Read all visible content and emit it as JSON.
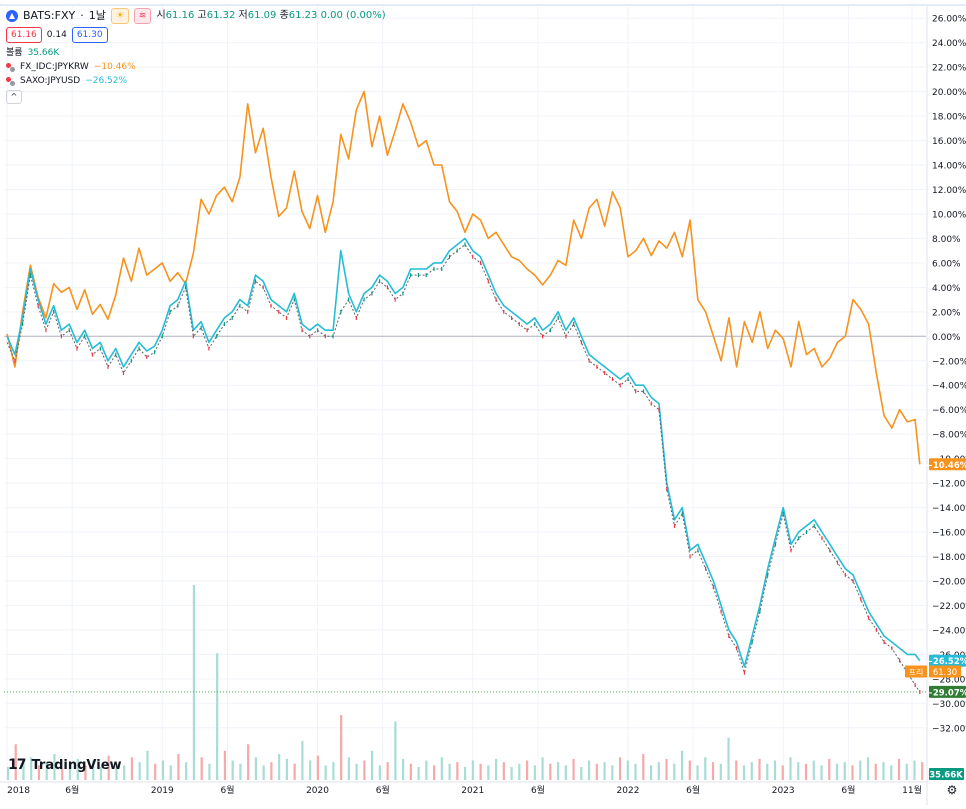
{
  "header": {
    "symbol": "BATS:FXY",
    "interval": "1날",
    "icon_a": "☀",
    "icon_b": "≋",
    "open_label": "시",
    "open": "61.16",
    "high_label": "고",
    "high": "61.32",
    "low_label": "저",
    "low": "61.09",
    "close_label": "종",
    "close": "61.23",
    "change": "0.00 (0.00%)",
    "bid": "61.16",
    "spread": "0.14",
    "ask": "61.30",
    "volume_label": "볼륨",
    "volume": "35.66K",
    "collapse": "^"
  },
  "comparisons": [
    {
      "symbol": "FX_IDC:JPYKRW",
      "change": "−10.46%",
      "color": "#f7921d"
    },
    {
      "symbol": "SAXO:JPYUSD",
      "change": "−26.52%",
      "color": "#26bcd6"
    }
  ],
  "branding": {
    "mark": "17",
    "text": "TradingView"
  },
  "settings_icon": "gear-icon",
  "colors": {
    "krw": "#f7921d",
    "usd": "#26bcd6",
    "candle_up": "#089981",
    "candle_down": "#f23645",
    "vol_up": "#a8dcd5",
    "vol_down": "#f7a9a9",
    "grid": "#f0f3fa",
    "baseline": "#b2b5be"
  },
  "chart_data": {
    "type": "line",
    "y_axis_format": "percent",
    "ylim": [
      -33,
      27
    ],
    "y_ticks": [
      "26.00%",
      "24.00%",
      "22.00%",
      "20.00%",
      "18.00%",
      "16.00%",
      "14.00%",
      "12.00%",
      "10.00%",
      "8.00%",
      "6.00%",
      "4.00%",
      "2.00%",
      "0.00%",
      "−2.00%",
      "−4.00%",
      "−6.00%",
      "−8.00%",
      "−10.00%",
      "−12.00%",
      "−14.00%",
      "−16.00%",
      "−18.00%",
      "−20.00%",
      "−22.00%",
      "−24.00%",
      "−26.00%",
      "−28.00%",
      "−30.00%",
      "−32.00%"
    ],
    "y_tick_values": [
      26,
      24,
      22,
      20,
      18,
      16,
      14,
      12,
      10,
      8,
      6,
      4,
      2,
      0,
      -2,
      -4,
      -6,
      -8,
      -10,
      -12,
      -14,
      -16,
      -18,
      -20,
      -22,
      -24,
      -26,
      -28,
      -30,
      -32
    ],
    "x_ticks": [
      {
        "label": "2018",
        "t": 2018.0
      },
      {
        "label": "6월",
        "t": 2018.42
      },
      {
        "label": "2019",
        "t": 2019.0
      },
      {
        "label": "6월",
        "t": 2019.42
      },
      {
        "label": "2020",
        "t": 2020.0
      },
      {
        "label": "6월",
        "t": 2020.42
      },
      {
        "label": "2021",
        "t": 2021.0
      },
      {
        "label": "6월",
        "t": 2021.42
      },
      {
        "label": "2022",
        "t": 2022.0
      },
      {
        "label": "6월",
        "t": 2022.42
      },
      {
        "label": "2023",
        "t": 2023.0
      },
      {
        "label": "6월",
        "t": 2023.42
      },
      {
        "label": "11월",
        "t": 2023.83
      }
    ],
    "xlim": [
      2017.98,
      2023.92
    ],
    "series": [
      {
        "name": "FX_IDC:JPYKRW",
        "role": "krw",
        "x": [
          2018.0,
          2018.05,
          2018.1,
          2018.15,
          2018.2,
          2018.25,
          2018.3,
          2018.35,
          2018.4,
          2018.45,
          2018.5,
          2018.55,
          2018.6,
          2018.65,
          2018.7,
          2018.75,
          2018.8,
          2018.85,
          2018.9,
          2018.95,
          2019.0,
          2019.05,
          2019.1,
          2019.15,
          2019.2,
          2019.25,
          2019.3,
          2019.35,
          2019.4,
          2019.45,
          2019.5,
          2019.55,
          2019.6,
          2019.65,
          2019.7,
          2019.75,
          2019.8,
          2019.85,
          2019.9,
          2019.95,
          2020.0,
          2020.05,
          2020.1,
          2020.15,
          2020.2,
          2020.25,
          2020.3,
          2020.35,
          2020.4,
          2020.45,
          2020.5,
          2020.55,
          2020.6,
          2020.65,
          2020.7,
          2020.75,
          2020.8,
          2020.85,
          2020.9,
          2020.95,
          2021.0,
          2021.05,
          2021.1,
          2021.15,
          2021.2,
          2021.25,
          2021.3,
          2021.35,
          2021.4,
          2021.45,
          2021.5,
          2021.55,
          2021.6,
          2021.65,
          2021.7,
          2021.75,
          2021.8,
          2021.85,
          2021.9,
          2021.95,
          2022.0,
          2022.05,
          2022.1,
          2022.15,
          2022.2,
          2022.25,
          2022.3,
          2022.35,
          2022.4,
          2022.45,
          2022.5,
          2022.55,
          2022.6,
          2022.65,
          2022.7,
          2022.75,
          2022.8,
          2022.85,
          2022.9,
          2022.95,
          2023.0,
          2023.05,
          2023.1,
          2023.15,
          2023.2,
          2023.25,
          2023.3,
          2023.35,
          2023.4,
          2023.45,
          2023.5,
          2023.55,
          2023.6,
          2023.65,
          2023.7,
          2023.75,
          2023.8,
          2023.85,
          2023.88
        ],
        "values": [
          0.2,
          -2.5,
          2.0,
          5.8,
          3.2,
          1.5,
          4.3,
          3.6,
          4.0,
          2.2,
          3.8,
          1.8,
          2.6,
          1.4,
          3.4,
          6.4,
          4.5,
          7.2,
          5.0,
          5.5,
          6.0,
          4.5,
          5.2,
          4.3,
          6.8,
          11.2,
          10.0,
          11.5,
          12.2,
          11.0,
          13.0,
          19.0,
          15.0,
          17.0,
          13.0,
          9.8,
          10.5,
          13.5,
          10.2,
          8.8,
          11.5,
          8.5,
          11.0,
          16.5,
          14.5,
          18.5,
          20.0,
          15.5,
          18.0,
          14.8,
          16.8,
          19.0,
          17.5,
          15.5,
          16.0,
          14.0,
          14.0,
          11.0,
          10.2,
          8.5,
          10.0,
          9.5,
          8.0,
          8.5,
          7.5,
          6.5,
          6.2,
          5.5,
          5.0,
          4.2,
          5.0,
          6.2,
          5.8,
          9.5,
          8.0,
          10.5,
          11.2,
          9.0,
          11.8,
          10.5,
          6.5,
          7.0,
          8.0,
          6.6,
          7.8,
          7.2,
          8.5,
          6.5,
          9.5,
          3.0,
          2.0,
          0.0,
          -2.0,
          1.5,
          -2.5,
          1.2,
          -0.5,
          2.0,
          -1.0,
          0.5,
          -0.2,
          -2.5,
          1.2,
          -1.5,
          -1.0,
          -2.5,
          -1.8,
          -0.5,
          0.0,
          3.0,
          2.2,
          1.0,
          -3.0,
          -6.5,
          -7.5,
          -6.0,
          -7.0,
          -6.8,
          -10.46
        ]
      },
      {
        "name": "SAXO:JPYUSD",
        "role": "usd",
        "x": [
          2018.0,
          2018.05,
          2018.1,
          2018.15,
          2018.2,
          2018.25,
          2018.3,
          2018.35,
          2018.4,
          2018.45,
          2018.5,
          2018.55,
          2018.6,
          2018.65,
          2018.7,
          2018.75,
          2018.8,
          2018.85,
          2018.9,
          2018.95,
          2019.0,
          2019.05,
          2019.1,
          2019.15,
          2019.2,
          2019.25,
          2019.3,
          2019.35,
          2019.4,
          2019.45,
          2019.5,
          2019.55,
          2019.6,
          2019.65,
          2019.7,
          2019.75,
          2019.8,
          2019.85,
          2019.9,
          2019.95,
          2020.0,
          2020.05,
          2020.1,
          2020.15,
          2020.2,
          2020.25,
          2020.3,
          2020.35,
          2020.4,
          2020.45,
          2020.5,
          2020.55,
          2020.6,
          2020.65,
          2020.7,
          2020.75,
          2020.8,
          2020.85,
          2020.9,
          2020.95,
          2021.0,
          2021.05,
          2021.1,
          2021.15,
          2021.2,
          2021.25,
          2021.3,
          2021.35,
          2021.4,
          2021.45,
          2021.5,
          2021.55,
          2021.6,
          2021.65,
          2021.7,
          2021.75,
          2021.8,
          2021.85,
          2021.9,
          2021.95,
          2022.0,
          2022.05,
          2022.1,
          2022.15,
          2022.2,
          2022.25,
          2022.3,
          2022.35,
          2022.4,
          2022.45,
          2022.5,
          2022.55,
          2022.6,
          2022.65,
          2022.7,
          2022.75,
          2022.8,
          2022.85,
          2022.9,
          2022.95,
          2023.0,
          2023.05,
          2023.1,
          2023.15,
          2023.2,
          2023.25,
          2023.3,
          2023.35,
          2023.4,
          2023.45,
          2023.5,
          2023.55,
          2023.6,
          2023.65,
          2023.7,
          2023.75,
          2023.8,
          2023.85,
          2023.88
        ],
        "values": [
          0.0,
          -1.5,
          1.5,
          5.5,
          3.0,
          1.0,
          2.5,
          0.5,
          1.0,
          -0.5,
          0.5,
          -1.0,
          -0.5,
          -2.0,
          -1.0,
          -2.5,
          -1.5,
          -0.5,
          -1.2,
          -0.8,
          0.5,
          2.5,
          3.0,
          4.5,
          0.5,
          1.2,
          -0.5,
          0.5,
          1.5,
          2.0,
          3.0,
          2.5,
          5.0,
          4.5,
          3.0,
          2.5,
          2.0,
          3.5,
          1.0,
          0.5,
          1.0,
          0.5,
          0.5,
          7.0,
          3.5,
          2.0,
          3.5,
          4.0,
          5.0,
          4.5,
          3.5,
          4.0,
          5.5,
          5.5,
          5.5,
          6.0,
          6.0,
          7.0,
          7.5,
          8.0,
          7.0,
          6.5,
          5.0,
          3.5,
          2.5,
          2.0,
          1.5,
          1.0,
          1.5,
          0.5,
          1.0,
          2.0,
          0.5,
          1.5,
          0.0,
          -1.5,
          -2.0,
          -2.5,
          -3.0,
          -3.5,
          -3.0,
          -4.0,
          -4.0,
          -5.0,
          -5.5,
          -12.0,
          -15.0,
          -14.0,
          -17.5,
          -17.0,
          -18.5,
          -20.0,
          -22.0,
          -24.0,
          -25.0,
          -27.0,
          -24.5,
          -22.0,
          -19.0,
          -16.5,
          -14.0,
          -17.0,
          -16.0,
          -15.5,
          -15.0,
          -16.0,
          -17.0,
          -18.0,
          -19.0,
          -19.5,
          -21.0,
          -22.5,
          -23.5,
          -24.5,
          -25.0,
          -25.5,
          -26.0,
          -26.0,
          -26.52
        ]
      },
      {
        "name": "BATS:FXY",
        "role": "main",
        "x": [
          2018.0,
          2018.05,
          2018.1,
          2018.15,
          2018.2,
          2018.25,
          2018.3,
          2018.35,
          2018.4,
          2018.45,
          2018.5,
          2018.55,
          2018.6,
          2018.65,
          2018.7,
          2018.75,
          2018.8,
          2018.85,
          2018.9,
          2018.95,
          2019.0,
          2019.05,
          2019.1,
          2019.15,
          2019.2,
          2019.25,
          2019.3,
          2019.35,
          2019.4,
          2019.45,
          2019.5,
          2019.55,
          2019.6,
          2019.65,
          2019.7,
          2019.75,
          2019.8,
          2019.85,
          2019.9,
          2019.95,
          2020.0,
          2020.05,
          2020.1,
          2020.15,
          2020.2,
          2020.25,
          2020.3,
          2020.35,
          2020.4,
          2020.45,
          2020.5,
          2020.55,
          2020.6,
          2020.65,
          2020.7,
          2020.75,
          2020.8,
          2020.85,
          2020.9,
          2020.95,
          2021.0,
          2021.05,
          2021.1,
          2021.15,
          2021.2,
          2021.25,
          2021.3,
          2021.35,
          2021.4,
          2021.45,
          2021.5,
          2021.55,
          2021.6,
          2021.65,
          2021.7,
          2021.75,
          2021.8,
          2021.85,
          2021.9,
          2021.95,
          2022.0,
          2022.05,
          2022.1,
          2022.15,
          2022.2,
          2022.25,
          2022.3,
          2022.35,
          2022.4,
          2022.45,
          2022.5,
          2022.55,
          2022.6,
          2022.65,
          2022.7,
          2022.75,
          2022.8,
          2022.85,
          2022.9,
          2022.95,
          2023.0,
          2023.05,
          2023.1,
          2023.15,
          2023.2,
          2023.25,
          2023.3,
          2023.35,
          2023.4,
          2023.45,
          2023.5,
          2023.55,
          2023.6,
          2023.65,
          2023.7,
          2023.75,
          2023.8,
          2023.85,
          2023.88
        ],
        "values": [
          -0.5,
          -2.0,
          1.0,
          5.0,
          2.5,
          0.5,
          2.0,
          0.0,
          0.5,
          -1.0,
          0.0,
          -1.5,
          -1.0,
          -2.5,
          -1.5,
          -3.0,
          -2.0,
          -1.0,
          -1.7,
          -1.3,
          0.0,
          2.0,
          2.5,
          4.0,
          0.0,
          0.7,
          -1.0,
          0.0,
          1.0,
          1.5,
          2.5,
          2.0,
          4.5,
          4.0,
          2.5,
          2.0,
          1.5,
          3.0,
          0.5,
          0.0,
          0.5,
          0.0,
          0.0,
          2.0,
          3.0,
          1.5,
          3.0,
          3.5,
          4.5,
          4.0,
          3.0,
          3.5,
          5.0,
          5.0,
          5.0,
          5.5,
          5.5,
          6.5,
          7.0,
          7.5,
          6.5,
          6.0,
          4.5,
          3.0,
          2.0,
          1.5,
          1.0,
          0.5,
          1.0,
          0.0,
          0.5,
          1.5,
          0.0,
          1.0,
          -0.5,
          -2.0,
          -2.5,
          -3.0,
          -3.5,
          -4.0,
          -3.5,
          -4.5,
          -4.5,
          -5.5,
          -6.0,
          -12.5,
          -15.5,
          -14.5,
          -18.0,
          -17.5,
          -19.0,
          -20.5,
          -22.5,
          -24.5,
          -25.5,
          -27.5,
          -25.0,
          -22.5,
          -19.5,
          -17.0,
          -14.5,
          -17.5,
          -16.5,
          -16.0,
          -15.5,
          -16.5,
          -17.5,
          -18.5,
          -19.5,
          -20.0,
          -21.5,
          -23.0,
          -24.0,
          -25.0,
          -25.5,
          -26.5,
          -27.5,
          -28.5,
          -29.07
        ]
      }
    ],
    "volume": {
      "values": [
        8,
        22,
        12,
        14,
        9,
        11,
        16,
        7,
        10,
        13,
        9,
        12,
        8,
        15,
        10,
        9,
        14,
        11,
        18,
        10,
        12,
        9,
        16,
        11,
        120,
        14,
        10,
        78,
        18,
        12,
        10,
        22,
        14,
        9,
        11,
        16,
        13,
        10,
        24,
        12,
        15,
        9,
        11,
        40,
        14,
        10,
        12,
        18,
        9,
        11,
        36,
        13,
        10,
        8,
        12,
        9,
        14,
        10,
        11,
        8,
        12,
        10,
        9,
        13,
        11,
        8,
        10,
        12,
        9,
        14,
        10,
        11,
        9,
        13,
        8,
        12,
        10,
        11,
        9,
        14,
        12,
        10,
        16,
        9,
        11,
        13,
        10,
        18,
        12,
        9,
        14,
        11,
        10,
        26,
        12,
        9,
        11,
        13,
        10,
        12,
        9,
        14,
        11,
        10,
        12,
        9,
        13,
        10,
        11,
        9,
        12,
        14,
        10,
        11,
        9,
        13,
        10,
        12,
        11
      ]
    },
    "axis_labels": [
      {
        "series": "FX_IDC:JPYKRW",
        "text": "−10.46%"
      },
      {
        "series": "SAXO:JPYUSD",
        "text": "−26.52%"
      },
      {
        "series": "BATS:FXY",
        "text": "−29.07%"
      }
    ],
    "price_tag": {
      "badge": "프리",
      "price": "61.30"
    },
    "volume_tag": "35.66K"
  }
}
